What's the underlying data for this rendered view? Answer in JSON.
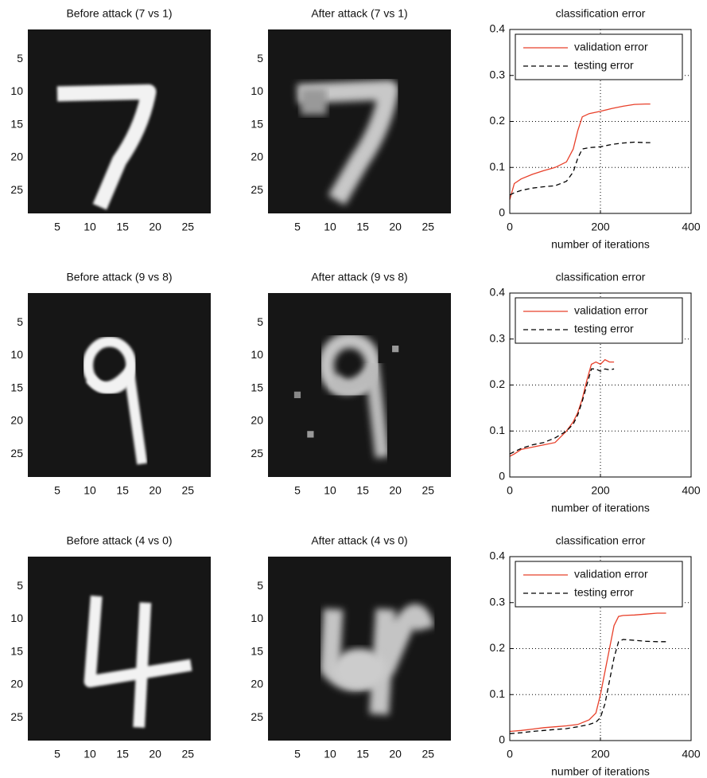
{
  "chart_data": [
    {
      "type": "image",
      "title": "Before attack (7 vs 1)",
      "xlim": [
        0.5,
        28.5
      ],
      "ylim": [
        0.5,
        28.5
      ],
      "yreverse": true,
      "xticks": [
        5,
        10,
        15,
        20,
        25
      ],
      "yticks": [
        5,
        10,
        15,
        20,
        25
      ]
    },
    {
      "type": "image",
      "title": "After attack (7 vs 1)",
      "xlim": [
        0.5,
        28.5
      ],
      "ylim": [
        0.5,
        28.5
      ],
      "yreverse": true,
      "xticks": [
        5,
        10,
        15,
        20,
        25
      ],
      "yticks": [
        5,
        10,
        15,
        20,
        25
      ]
    },
    {
      "type": "line",
      "title": "classification error",
      "xlabel": "number of iterations",
      "xlim": [
        0,
        400
      ],
      "ylim": [
        0,
        0.4
      ],
      "xticks": [
        0,
        200,
        400
      ],
      "yticks": [
        0,
        0.1,
        0.2,
        0.3,
        0.4
      ],
      "grid": true,
      "legend": "upper left",
      "x": [
        0,
        10,
        25,
        50,
        75,
        100,
        125,
        140,
        150,
        160,
        175,
        200,
        225,
        250,
        275,
        300,
        310
      ],
      "series": [
        {
          "name": "validation error",
          "color": "#e8402a",
          "dash": "solid",
          "values": [
            0.03,
            0.065,
            0.075,
            0.085,
            0.093,
            0.1,
            0.112,
            0.14,
            0.18,
            0.21,
            0.217,
            0.222,
            0.228,
            0.233,
            0.237,
            0.238,
            0.238
          ]
        },
        {
          "name": "testing error",
          "color": "#000000",
          "dash": "dashed",
          "values": [
            0.04,
            0.045,
            0.05,
            0.055,
            0.058,
            0.06,
            0.07,
            0.09,
            0.12,
            0.14,
            0.143,
            0.145,
            0.15,
            0.153,
            0.155,
            0.154,
            0.154
          ]
        }
      ]
    },
    {
      "type": "image",
      "title": "Before attack (9 vs 8)",
      "xlim": [
        0.5,
        28.5
      ],
      "ylim": [
        0.5,
        28.5
      ],
      "yreverse": true,
      "xticks": [
        5,
        10,
        15,
        20,
        25
      ],
      "yticks": [
        5,
        10,
        15,
        20,
        25
      ]
    },
    {
      "type": "image",
      "title": "After attack (9 vs 8)",
      "xlim": [
        0.5,
        28.5
      ],
      "ylim": [
        0.5,
        28.5
      ],
      "yreverse": true,
      "xticks": [
        5,
        10,
        15,
        20,
        25
      ],
      "yticks": [
        5,
        10,
        15,
        20,
        25
      ]
    },
    {
      "type": "line",
      "title": "classification error",
      "xlabel": "number of iterations",
      "xlim": [
        0,
        400
      ],
      "ylim": [
        0,
        0.4
      ],
      "xticks": [
        0,
        200,
        400
      ],
      "yticks": [
        0,
        0.1,
        0.2,
        0.3,
        0.4
      ],
      "grid": true,
      "legend": "upper left",
      "x": [
        0,
        10,
        25,
        50,
        75,
        100,
        125,
        140,
        150,
        160,
        170,
        180,
        190,
        200,
        210,
        220,
        230
      ],
      "series": [
        {
          "name": "validation error",
          "color": "#e8402a",
          "dash": "solid",
          "values": [
            0.045,
            0.05,
            0.06,
            0.065,
            0.07,
            0.075,
            0.1,
            0.12,
            0.14,
            0.17,
            0.21,
            0.245,
            0.25,
            0.245,
            0.255,
            0.25,
            0.25
          ]
        },
        {
          "name": "testing error",
          "color": "#000000",
          "dash": "dashed",
          "values": [
            0.05,
            0.055,
            0.062,
            0.07,
            0.075,
            0.085,
            0.1,
            0.115,
            0.135,
            0.165,
            0.2,
            0.235,
            0.235,
            0.23,
            0.235,
            0.233,
            0.235
          ]
        }
      ]
    },
    {
      "type": "image",
      "title": "Before attack (4 vs 0)",
      "xlim": [
        0.5,
        28.5
      ],
      "ylim": [
        0.5,
        28.5
      ],
      "yreverse": true,
      "xticks": [
        5,
        10,
        15,
        20,
        25
      ],
      "yticks": [
        5,
        10,
        15,
        20,
        25
      ]
    },
    {
      "type": "image",
      "title": "After attack (4 vs 0)",
      "xlim": [
        0.5,
        28.5
      ],
      "ylim": [
        0.5,
        28.5
      ],
      "yreverse": true,
      "xticks": [
        5,
        10,
        15,
        20,
        25
      ],
      "yticks": [
        5,
        10,
        15,
        20,
        25
      ]
    },
    {
      "type": "line",
      "title": "classification error",
      "xlabel": "number of iterations",
      "xlim": [
        0,
        400
      ],
      "ylim": [
        0,
        0.4
      ],
      "xticks": [
        0,
        200,
        400
      ],
      "yticks": [
        0,
        0.1,
        0.2,
        0.3,
        0.4
      ],
      "grid": true,
      "legend": "upper left",
      "x": [
        0,
        25,
        50,
        75,
        100,
        125,
        150,
        175,
        190,
        200,
        210,
        220,
        230,
        240,
        250,
        275,
        300,
        325,
        345
      ],
      "series": [
        {
          "name": "validation error",
          "color": "#e8402a",
          "dash": "solid",
          "values": [
            0.02,
            0.022,
            0.025,
            0.028,
            0.03,
            0.032,
            0.035,
            0.045,
            0.06,
            0.1,
            0.15,
            0.2,
            0.25,
            0.27,
            0.272,
            0.273,
            0.275,
            0.277,
            0.277
          ]
        },
        {
          "name": "testing error",
          "color": "#000000",
          "dash": "dashed",
          "values": [
            0.015,
            0.017,
            0.02,
            0.022,
            0.024,
            0.026,
            0.03,
            0.035,
            0.04,
            0.05,
            0.08,
            0.13,
            0.18,
            0.215,
            0.22,
            0.218,
            0.216,
            0.215,
            0.215
          ]
        }
      ]
    }
  ]
}
